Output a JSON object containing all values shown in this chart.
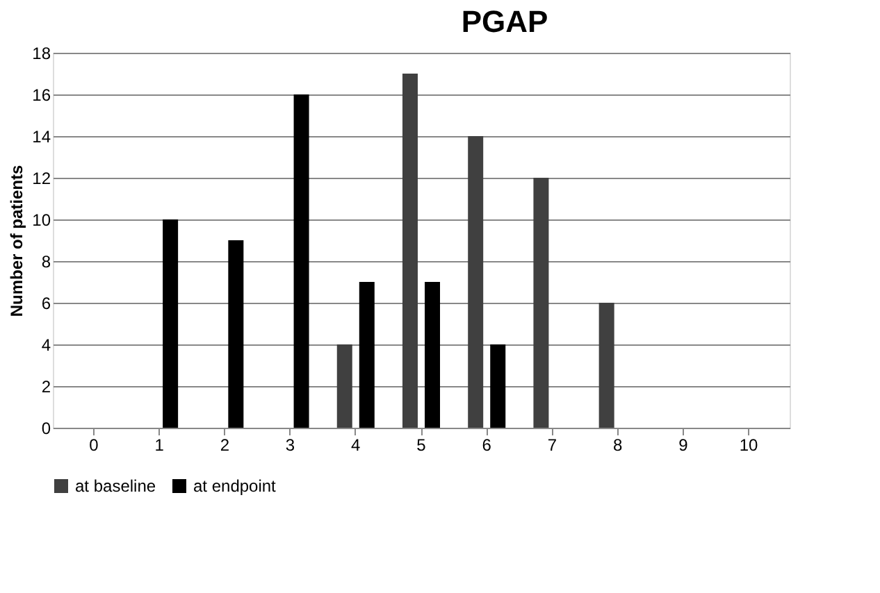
{
  "chart_data": {
    "type": "bar",
    "title": "PGAP",
    "ylabel": "Number of patients",
    "categories": [
      "0",
      "1",
      "2",
      "3",
      "4",
      "5",
      "6",
      "7",
      "8",
      "9",
      "10"
    ],
    "series": [
      {
        "name": "at baseline",
        "color": "#404040",
        "values": [
          0,
          0,
          0,
          0,
          4,
          17,
          14,
          12,
          6,
          0,
          0
        ]
      },
      {
        "name": "at endpoint",
        "color": "#000000",
        "values": [
          0,
          10,
          9,
          16,
          7,
          7,
          4,
          0,
          0,
          0,
          0
        ]
      }
    ],
    "ylim": [
      0,
      18
    ],
    "yticks": [
      0,
      2,
      4,
      6,
      8,
      10,
      12,
      14,
      16,
      18
    ],
    "grid": "y",
    "legend": "bottom"
  }
}
